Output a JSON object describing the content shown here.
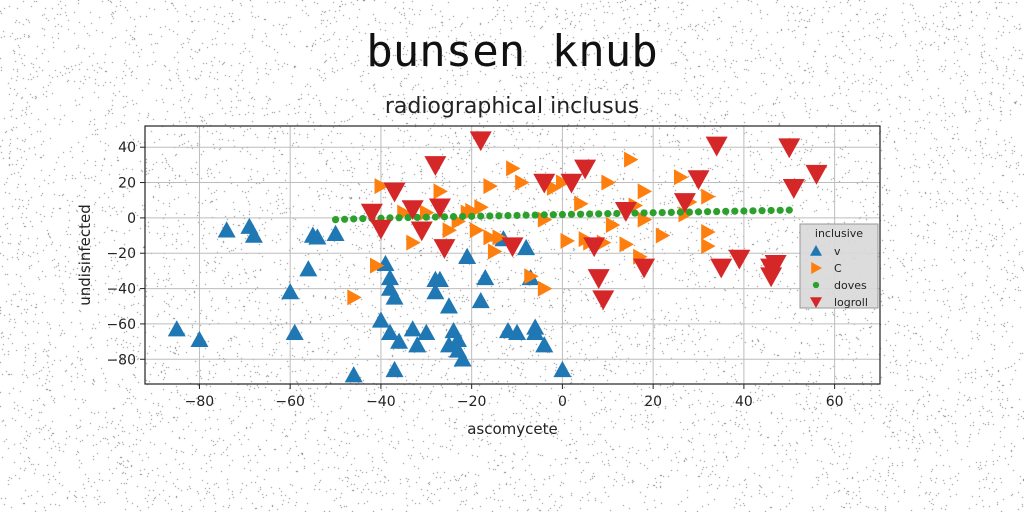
{
  "figure": {
    "suptitle": "bunsen knub",
    "title": "radiographical inclusus"
  },
  "chart_data": {
    "type": "scatter",
    "title": "radiographical inclusus",
    "suptitle": "bunsen knub",
    "xlabel": "ascomycete",
    "ylabel": "undisinfected",
    "xlim": [
      -92,
      70
    ],
    "ylim": [
      -94,
      52
    ],
    "xticks": [
      -80,
      -60,
      -40,
      -20,
      0,
      20,
      40,
      60
    ],
    "yticks": [
      -80,
      -60,
      -40,
      -20,
      0,
      20,
      40
    ],
    "grid": true,
    "legend": {
      "title": "inclusive",
      "placement": "center-right"
    },
    "series": [
      {
        "name": "v",
        "marker": "triangle-up",
        "color": "#1f77b4",
        "points": [
          [
            -85,
            -63
          ],
          [
            -80,
            -69
          ],
          [
            -74,
            -7
          ],
          [
            -69,
            -5
          ],
          [
            -68,
            -10
          ],
          [
            -60,
            -42
          ],
          [
            -59,
            -65
          ],
          [
            -56,
            -29
          ],
          [
            -55,
            -10
          ],
          [
            -54,
            -11
          ],
          [
            -50,
            -9
          ],
          [
            -46,
            -89
          ],
          [
            -40,
            -58
          ],
          [
            -39,
            -26
          ],
          [
            -38,
            -65
          ],
          [
            -38,
            -34
          ],
          [
            -38,
            -40
          ],
          [
            -37,
            -45
          ],
          [
            -37,
            -86
          ],
          [
            -36,
            -70
          ],
          [
            -33,
            -63
          ],
          [
            -32,
            -72
          ],
          [
            -30,
            -65
          ],
          [
            -28,
            -42
          ],
          [
            -28,
            -35
          ],
          [
            -27,
            -35
          ],
          [
            -25,
            -50
          ],
          [
            -24,
            -64
          ],
          [
            -25,
            -72
          ],
          [
            -23,
            -69
          ],
          [
            -23,
            -75
          ],
          [
            -22,
            -80
          ],
          [
            -21,
            -22
          ],
          [
            -18,
            -47
          ],
          [
            -17,
            -34
          ],
          [
            -13,
            -12
          ],
          [
            -12,
            -64
          ],
          [
            -10,
            -65
          ],
          [
            -8,
            -17
          ],
          [
            -7,
            -34
          ],
          [
            -6,
            -62
          ],
          [
            -6,
            -65
          ],
          [
            -4,
            -72
          ],
          [
            0,
            -86
          ]
        ]
      },
      {
        "name": "C",
        "marker": "triangle-right",
        "color": "#ff7f0e",
        "points": [
          [
            -46,
            -45
          ],
          [
            -41,
            -27
          ],
          [
            -40,
            18
          ],
          [
            -35,
            3
          ],
          [
            -33,
            -14
          ],
          [
            -30,
            3
          ],
          [
            -27,
            15
          ],
          [
            -25,
            -7
          ],
          [
            -23,
            -2
          ],
          [
            -21,
            3
          ],
          [
            -20,
            4
          ],
          [
            -19,
            -7
          ],
          [
            -18,
            6
          ],
          [
            -16,
            -11
          ],
          [
            -16,
            18
          ],
          [
            -15,
            -19
          ],
          [
            -14,
            -11
          ],
          [
            -11,
            28
          ],
          [
            -9,
            20
          ],
          [
            -7,
            -33
          ],
          [
            -4,
            -40
          ],
          [
            -4,
            -1
          ],
          [
            -2,
            17
          ],
          [
            0,
            20
          ],
          [
            1,
            -13
          ],
          [
            4,
            8
          ],
          [
            5,
            -12
          ],
          [
            6,
            -14
          ],
          [
            9,
            -14
          ],
          [
            10,
            20
          ],
          [
            11,
            -4
          ],
          [
            14,
            -15
          ],
          [
            15,
            33
          ],
          [
            16,
            7
          ],
          [
            17,
            -22
          ],
          [
            18,
            15
          ],
          [
            18,
            -1
          ],
          [
            22,
            -10
          ],
          [
            26,
            23
          ],
          [
            27,
            2
          ],
          [
            28,
            9
          ],
          [
            32,
            -16
          ],
          [
            32,
            -8
          ],
          [
            32,
            12
          ]
        ]
      },
      {
        "name": "doves",
        "marker": "circle",
        "color": "#2ca02c",
        "points": [
          [
            -50,
            -1
          ],
          [
            -48,
            -0.8
          ],
          [
            -46,
            -0.6
          ],
          [
            -44,
            -0.4
          ],
          [
            -42,
            -0.3
          ],
          [
            -40,
            -0.2
          ],
          [
            -38,
            0
          ],
          [
            -36,
            0.1
          ],
          [
            -34,
            0.2
          ],
          [
            -32,
            0.3
          ],
          [
            -30,
            0.4
          ],
          [
            -28,
            0.5
          ],
          [
            -26,
            0.6
          ],
          [
            -24,
            0.7
          ],
          [
            -22,
            0.8
          ],
          [
            -20,
            0.9
          ],
          [
            -18,
            1
          ],
          [
            -16,
            1.1
          ],
          [
            -14,
            1.2
          ],
          [
            -12,
            1.3
          ],
          [
            -10,
            1.4
          ],
          [
            -8,
            1.5
          ],
          [
            -6,
            1.6
          ],
          [
            -4,
            1.7
          ],
          [
            -2,
            1.8
          ],
          [
            0,
            1.9
          ],
          [
            2,
            2
          ],
          [
            4,
            2.1
          ],
          [
            6,
            2.2
          ],
          [
            8,
            2.3
          ],
          [
            10,
            2.4
          ],
          [
            12,
            2.5
          ],
          [
            14,
            2.6
          ],
          [
            16,
            2.7
          ],
          [
            18,
            2.8
          ],
          [
            20,
            2.9
          ],
          [
            22,
            3
          ],
          [
            24,
            3.1
          ],
          [
            26,
            3.2
          ],
          [
            28,
            3.3
          ],
          [
            30,
            3.4
          ],
          [
            32,
            3.5
          ],
          [
            34,
            3.6
          ],
          [
            36,
            3.7
          ],
          [
            38,
            3.8
          ],
          [
            40,
            3.9
          ],
          [
            42,
            4
          ],
          [
            44,
            4.1
          ],
          [
            46,
            4.2
          ],
          [
            48,
            4.3
          ],
          [
            50,
            4.4
          ]
        ]
      },
      {
        "name": "logroll",
        "marker": "triangle-down",
        "color": "#d62728",
        "points": [
          [
            -42,
            3
          ],
          [
            -40,
            -6
          ],
          [
            -37,
            15
          ],
          [
            -33,
            5
          ],
          [
            -31,
            -7
          ],
          [
            -28,
            30
          ],
          [
            -27,
            6
          ],
          [
            -26,
            -17
          ],
          [
            -18,
            44
          ],
          [
            -11,
            -16
          ],
          [
            -4,
            20
          ],
          [
            2,
            20
          ],
          [
            5,
            28
          ],
          [
            7,
            -16
          ],
          [
            8,
            -34
          ],
          [
            9,
            -46
          ],
          [
            14,
            4
          ],
          [
            18,
            -28
          ],
          [
            27,
            9
          ],
          [
            30,
            22
          ],
          [
            34,
            41
          ],
          [
            35,
            -28
          ],
          [
            39,
            -23
          ],
          [
            46,
            -28
          ],
          [
            46,
            -33
          ],
          [
            47,
            -26
          ],
          [
            50,
            40
          ],
          [
            51,
            17
          ],
          [
            56,
            25
          ]
        ]
      }
    ]
  }
}
